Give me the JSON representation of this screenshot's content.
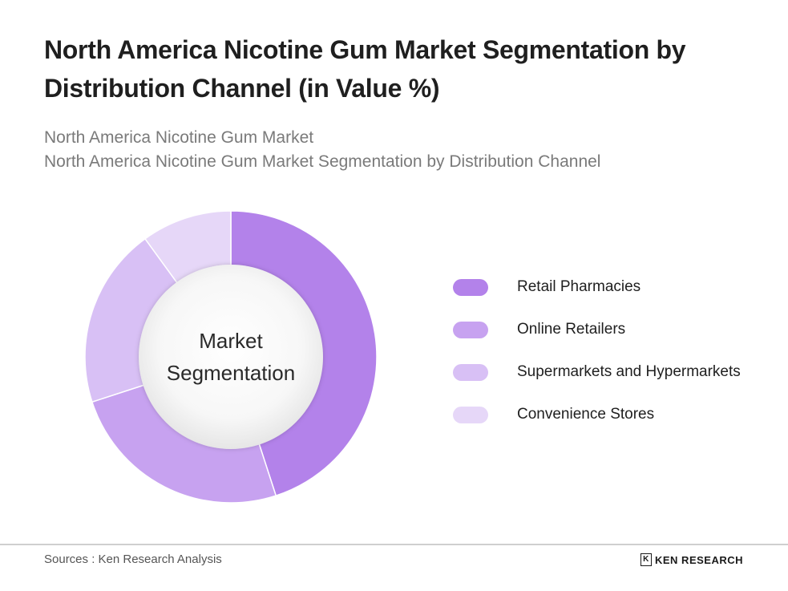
{
  "title": "North America Nicotine Gum Market Segmentation by Distribution Channel (in Value %)",
  "subtitle_1": "North America Nicotine Gum Market",
  "subtitle_2": "North America Nicotine Gum Market Segmentation by Distribution Channel",
  "center_label_1": "Market",
  "center_label_2": "Segmentation",
  "source": "Sources : Ken Research Analysis",
  "logo_text": "KEN RESEARCH",
  "logo_mark": "K",
  "chart_data": {
    "type": "pie",
    "style": "donut",
    "categories": [
      "Retail Pharmacies",
      "Online Retailers",
      "Supermarkets and Hypermarkets",
      "Convenience Stores"
    ],
    "values": [
      45,
      25,
      20,
      10
    ],
    "colors": [
      "#b382ea",
      "#c7a2f0",
      "#d8c0f5",
      "#e6d7f8"
    ],
    "legend_position": "right"
  }
}
